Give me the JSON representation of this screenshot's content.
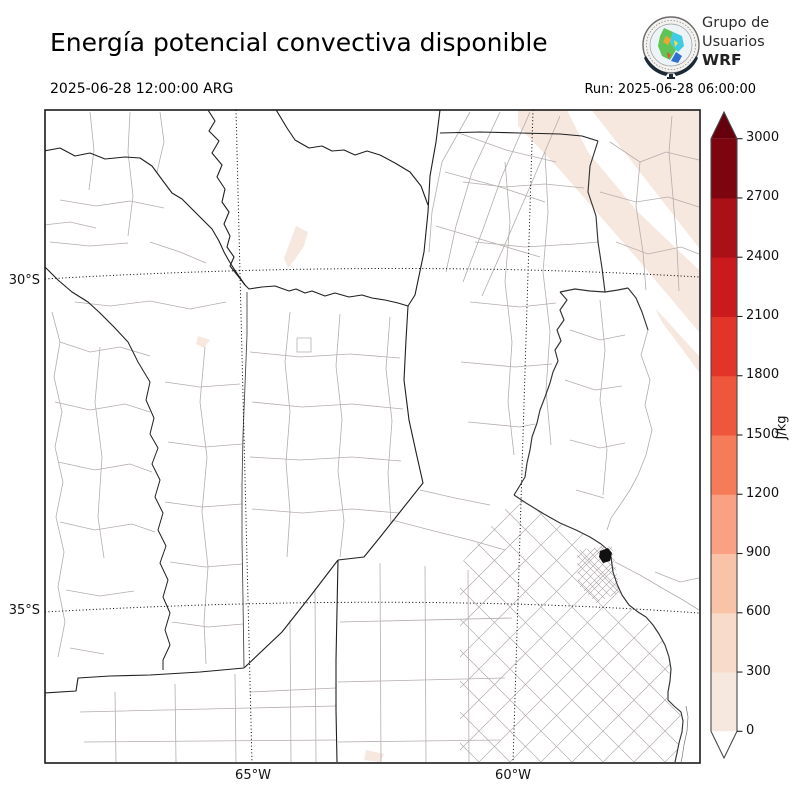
{
  "header": {
    "title": "Energía potencial convectiva disponible",
    "valid_time": "2025-06-28 12:00:00 ARG",
    "run_label": "Run: 2025-06-28 06:00:00"
  },
  "logo": {
    "org_line1": "Grupo de",
    "org_line2": "Usuarios",
    "org_line3": "WRF",
    "emblem_icon": "globe-weather-seal-icon"
  },
  "axes": {
    "lat_ticks": [
      "30°S",
      "35°S"
    ],
    "lon_ticks": [
      "65°W",
      "60°W"
    ]
  },
  "colorbar": {
    "unit": "J/kg",
    "tick_labels_top_to_bottom": [
      "3000",
      "2700",
      "2400",
      "2100",
      "1800",
      "1500",
      "1200",
      "900",
      "600",
      "300",
      "0"
    ],
    "segment_colors_bottom_to_top": [
      "#f6e8df",
      "#f8dcc9",
      "#f8c3a6",
      "#faa183",
      "#f67b58",
      "#ef573d",
      "#e23428",
      "#ca1a1e",
      "#ab1016",
      "#7d0510"
    ],
    "under_color": "#ffffff",
    "over_color": "#67000d",
    "outline_color": "#4a4a4a"
  },
  "map_style": {
    "province_border_color": "#1f1f1f",
    "department_border_color": "#b5acac",
    "gridline_color": "#000000",
    "shaded_low_cape_color": "#f6e8df"
  },
  "chart_data": {
    "type": "map",
    "field": "CAPE (convective available potential energy)",
    "unit": "J/kg",
    "title": "Energía potencial convectiva disponible",
    "valid_time": "2025-06-28 12:00:00 ARG",
    "run": "2025-06-28 06:00:00",
    "scale_levels": [
      0,
      300,
      600,
      900,
      1200,
      1500,
      1800,
      2100,
      2400,
      2700,
      3000
    ],
    "scale_colors": [
      "#f6e8df",
      "#f8dcc9",
      "#f8c3a6",
      "#faa183",
      "#f67b58",
      "#ef573d",
      "#e23428",
      "#ca1a1e",
      "#ab1016",
      "#7d0510"
    ],
    "colorbar_extend": "both",
    "lat_gridlines": [
      "30°S",
      "35°S"
    ],
    "lon_gridlines": [
      "65°W",
      "60°W"
    ],
    "shaded_region": {
      "location": "northeast corner diagonal band + small northwest patches",
      "value_range_J_per_kg": [
        0,
        300
      ]
    }
  }
}
